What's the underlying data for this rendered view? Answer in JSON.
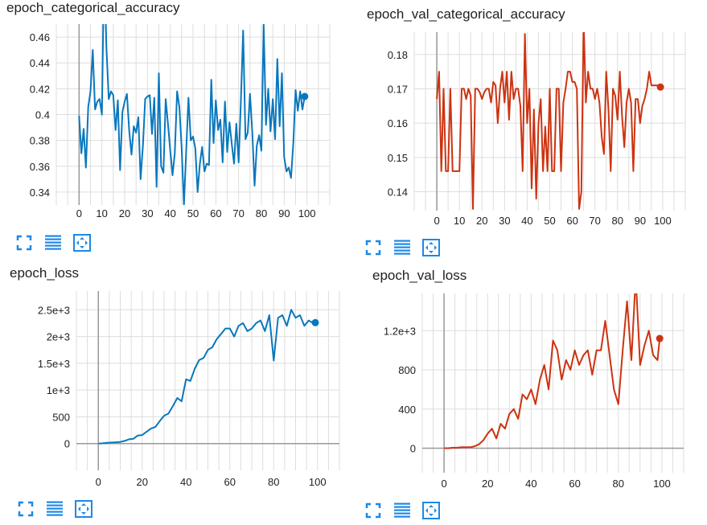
{
  "colors": {
    "series_blue": "#0877bd",
    "series_orange": "#cc3311",
    "grid": "#dddddd",
    "axis": "#999999",
    "toolbar_icon": "#1e88e5"
  },
  "toolbar_icons": [
    "fit-domain-icon",
    "toggle-log-scale-icon",
    "expand-chart-icon"
  ],
  "chart_data": [
    {
      "type": "line",
      "title": "epoch_categorical_accuracy",
      "xlabel": "",
      "ylabel": "",
      "xlim": [
        -10,
        110
      ],
      "ylim": [
        0.33,
        0.47
      ],
      "x_ticks": [
        0,
        10,
        20,
        30,
        40,
        50,
        60,
        70,
        80,
        90,
        100
      ],
      "x_tick_labels": [
        "0",
        "10",
        "20",
        "30",
        "40",
        "50",
        "60",
        "70",
        "80",
        "90",
        "100"
      ],
      "y_ticks": [
        0.34,
        0.36,
        0.38,
        0.4,
        0.42,
        0.44,
        0.46
      ],
      "y_tick_labels": [
        "0.34",
        "0.36",
        "0.38",
        "0.4",
        "0.42",
        "0.44",
        "0.46"
      ],
      "grid": true,
      "series": [
        {
          "color": "#0877bd",
          "x": [
            0,
            1,
            2,
            3,
            4,
            5,
            6,
            7,
            8,
            9,
            10,
            11,
            12,
            13,
            14,
            15,
            16,
            17,
            18,
            19,
            20,
            21,
            22,
            23,
            24,
            25,
            26,
            27,
            28,
            29,
            30,
            31,
            32,
            33,
            34,
            35,
            36,
            37,
            38,
            39,
            40,
            41,
            42,
            43,
            44,
            45,
            46,
            47,
            48,
            49,
            50,
            51,
            52,
            53,
            54,
            55,
            56,
            57,
            58,
            59,
            60,
            61,
            62,
            63,
            64,
            65,
            66,
            67,
            68,
            69,
            70,
            71,
            72,
            73,
            74,
            75,
            76,
            77,
            78,
            79,
            80,
            81,
            82,
            83,
            84,
            85,
            86,
            87,
            88,
            89,
            90,
            91,
            92,
            93,
            94,
            95,
            96,
            97,
            98,
            99
          ],
          "y": [
            0.399,
            0.37,
            0.389,
            0.359,
            0.406,
            0.418,
            0.45,
            0.404,
            0.41,
            0.412,
            0.4,
            0.52,
            0.452,
            0.412,
            0.418,
            0.415,
            0.388,
            0.411,
            0.357,
            0.402,
            0.41,
            0.416,
            0.387,
            0.369,
            0.391,
            0.386,
            0.398,
            0.35,
            0.376,
            0.412,
            0.414,
            0.415,
            0.385,
            0.413,
            0.344,
            0.432,
            0.36,
            0.355,
            0.412,
            0.393,
            0.372,
            0.353,
            0.37,
            0.418,
            0.406,
            0.375,
            0.33,
            0.372,
            0.413,
            0.38,
            0.383,
            0.374,
            0.34,
            0.362,
            0.375,
            0.356,
            0.362,
            0.361,
            0.427,
            0.378,
            0.411,
            0.388,
            0.396,
            0.363,
            0.41,
            0.371,
            0.394,
            0.377,
            0.362,
            0.393,
            0.363,
            0.411,
            0.465,
            0.381,
            0.386,
            0.416,
            0.386,
            0.345,
            0.376,
            0.384,
            0.372,
            0.47,
            0.392,
            0.42,
            0.387,
            0.412,
            0.381,
            0.443,
            0.391,
            0.432,
            0.367,
            0.356,
            0.359,
            0.351,
            0.378,
            0.419,
            0.403,
            0.418,
            0.404,
            0.414
          ],
          "end_marker": {
            "x": 99,
            "y": 0.414
          }
        }
      ]
    },
    {
      "type": "line",
      "title": "epoch_val_categorical_accuracy",
      "xlabel": "",
      "ylabel": "",
      "xlim": [
        -10,
        110
      ],
      "ylim": [
        0.1345,
        0.1865
      ],
      "x_ticks": [
        0,
        10,
        20,
        30,
        40,
        50,
        60,
        70,
        80,
        90,
        100
      ],
      "x_tick_labels": [
        "0",
        "10",
        "20",
        "30",
        "40",
        "50",
        "60",
        "70",
        "80",
        "90",
        "100"
      ],
      "y_ticks": [
        0.14,
        0.15,
        0.16,
        0.17,
        0.18
      ],
      "y_tick_labels": [
        "0.14",
        "0.15",
        "0.16",
        "0.17",
        "0.18"
      ],
      "grid": true,
      "series": [
        {
          "color": "#cc3311",
          "x": [
            0,
            1,
            2,
            3,
            4,
            5,
            6,
            7,
            8,
            9,
            10,
            11,
            12,
            13,
            14,
            15,
            16,
            17,
            18,
            19,
            20,
            21,
            22,
            23,
            24,
            25,
            26,
            27,
            28,
            29,
            30,
            31,
            32,
            33,
            34,
            35,
            36,
            37,
            38,
            39,
            40,
            41,
            42,
            43,
            44,
            45,
            46,
            47,
            48,
            49,
            50,
            51,
            52,
            53,
            54,
            55,
            56,
            57,
            58,
            59,
            60,
            61,
            62,
            63,
            64,
            65,
            66,
            67,
            68,
            69,
            70,
            71,
            72,
            73,
            74,
            75,
            76,
            77,
            78,
            79,
            80,
            81,
            82,
            83,
            84,
            85,
            86,
            87,
            88,
            89,
            90,
            91,
            92,
            93,
            94,
            95,
            96,
            97,
            98,
            99
          ],
          "y": [
            0.167,
            0.175,
            0.146,
            0.17,
            0.146,
            0.146,
            0.17,
            0.146,
            0.146,
            0.146,
            0.146,
            0.17,
            0.17,
            0.167,
            0.17,
            0.168,
            0.135,
            0.17,
            0.17,
            0.169,
            0.167,
            0.169,
            0.17,
            0.17,
            0.166,
            0.172,
            0.171,
            0.16,
            0.17,
            0.175,
            0.166,
            0.175,
            0.161,
            0.175,
            0.167,
            0.17,
            0.17,
            0.165,
            0.146,
            0.186,
            0.16,
            0.17,
            0.141,
            0.164,
            0.138,
            0.16,
            0.167,
            0.146,
            0.159,
            0.146,
            0.17,
            0.146,
            0.146,
            0.17,
            0.17,
            0.146,
            0.166,
            0.17,
            0.175,
            0.175,
            0.172,
            0.172,
            0.17,
            0.135,
            0.14,
            0.19,
            0.166,
            0.175,
            0.17,
            0.17,
            0.167,
            0.17,
            0.166,
            0.156,
            0.151,
            0.175,
            0.164,
            0.146,
            0.17,
            0.168,
            0.161,
            0.175,
            0.162,
            0.153,
            0.166,
            0.17,
            0.166,
            0.146,
            0.167,
            0.167,
            0.16,
            0.165,
            0.167,
            0.17,
            0.175,
            0.171,
            0.171,
            0.171,
            0.171,
            0.1705
          ],
          "end_marker": {
            "x": 99,
            "y": 0.1705
          }
        }
      ]
    },
    {
      "type": "line",
      "title": "epoch_loss",
      "xlabel": "",
      "ylabel": "",
      "xlim": [
        -10,
        110
      ],
      "ylim": [
        -500,
        2850
      ],
      "x_ticks": [
        0,
        20,
        40,
        60,
        80,
        100
      ],
      "x_tick_labels": [
        "0",
        "20",
        "40",
        "60",
        "80",
        "100"
      ],
      "y_ticks": [
        0,
        500,
        1000,
        1500,
        2000,
        2500
      ],
      "y_tick_labels": [
        "0",
        "500",
        "1e+3",
        "1.5e+3",
        "2e+3",
        "2.5e+3"
      ],
      "grid": true,
      "series": [
        {
          "color": "#0877bd",
          "x": [
            0,
            2,
            4,
            6,
            8,
            10,
            12,
            14,
            16,
            18,
            20,
            22,
            24,
            26,
            28,
            30,
            32,
            34,
            36,
            38,
            40,
            42,
            44,
            46,
            48,
            50,
            52,
            54,
            56,
            58,
            60,
            62,
            64,
            66,
            68,
            70,
            72,
            74,
            76,
            78,
            80,
            82,
            84,
            86,
            88,
            90,
            92,
            94,
            96,
            98,
            99
          ],
          "y": [
            0,
            5,
            15,
            20,
            25,
            30,
            50,
            80,
            90,
            150,
            160,
            220,
            280,
            310,
            420,
            520,
            560,
            700,
            850,
            790,
            1200,
            1170,
            1400,
            1560,
            1600,
            1750,
            1800,
            1950,
            2050,
            2150,
            2150,
            2000,
            2200,
            2250,
            2100,
            2150,
            2250,
            2300,
            2100,
            2400,
            1550,
            2350,
            2400,
            2200,
            2500,
            2350,
            2400,
            2200,
            2300,
            2250,
            2260
          ],
          "end_marker": {
            "x": 99,
            "y": 2260
          }
        }
      ]
    },
    {
      "type": "line",
      "title": "epoch_val_loss",
      "xlabel": "",
      "ylabel": "",
      "xlim": [
        -10,
        110
      ],
      "ylim": [
        -250,
        1580
      ],
      "x_ticks": [
        0,
        20,
        40,
        60,
        80,
        100
      ],
      "x_tick_labels": [
        "0",
        "20",
        "40",
        "60",
        "80",
        "100"
      ],
      "y_ticks": [
        0,
        400,
        800,
        1200
      ],
      "y_tick_labels": [
        "0",
        "400",
        "800",
        "1.2e+3"
      ],
      "grid": true,
      "series": [
        {
          "color": "#cc3311",
          "x": [
            0,
            2,
            4,
            6,
            8,
            10,
            12,
            14,
            16,
            18,
            20,
            22,
            24,
            26,
            28,
            30,
            32,
            34,
            36,
            38,
            40,
            42,
            44,
            46,
            48,
            50,
            52,
            54,
            56,
            58,
            60,
            62,
            64,
            66,
            68,
            70,
            72,
            74,
            76,
            78,
            80,
            82,
            84,
            86,
            88,
            90,
            92,
            94,
            96,
            98,
            99
          ],
          "y": [
            0,
            0,
            5,
            5,
            10,
            10,
            10,
            20,
            40,
            80,
            150,
            200,
            100,
            250,
            200,
            350,
            400,
            300,
            550,
            500,
            600,
            450,
            700,
            850,
            600,
            1100,
            1000,
            700,
            900,
            800,
            1000,
            850,
            950,
            1000,
            750,
            1000,
            1000,
            1300,
            950,
            600,
            450,
            1000,
            1500,
            900,
            1750,
            850,
            1050,
            1200,
            950,
            900,
            1120
          ],
          "end_marker": {
            "x": 99,
            "y": 1120
          }
        }
      ]
    }
  ]
}
